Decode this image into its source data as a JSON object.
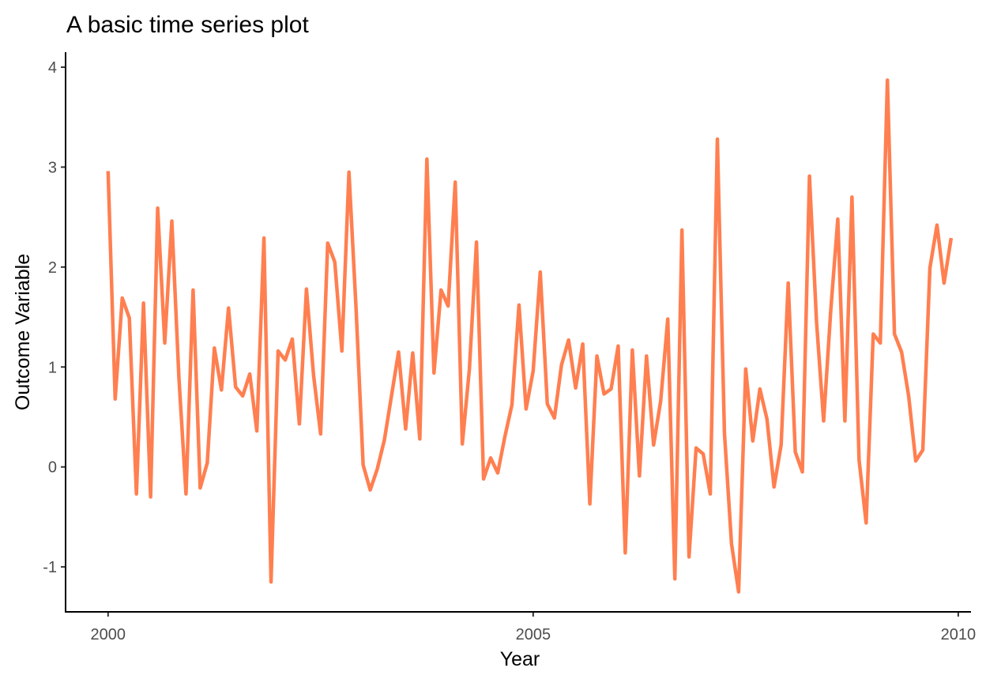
{
  "chart_data": {
    "type": "line",
    "title": "A basic time series plot",
    "xlabel": "Year",
    "ylabel": "Outcome Variable",
    "xlim": [
      1999.5,
      2010.15
    ],
    "ylim": [
      -1.45,
      4.15
    ],
    "xticks": [
      {
        "value": 2000,
        "label": "2000"
      },
      {
        "value": 2005,
        "label": "2005"
      },
      {
        "value": 2010,
        "label": "2010"
      }
    ],
    "yticks": [
      {
        "value": -1,
        "label": "-1"
      },
      {
        "value": 0,
        "label": "0"
      },
      {
        "value": 1,
        "label": "1"
      },
      {
        "value": 2,
        "label": "2"
      },
      {
        "value": 3,
        "label": "3"
      },
      {
        "value": 4,
        "label": "4"
      }
    ],
    "grid": false,
    "legend": "none",
    "colors": {
      "line": "#ff7f50"
    },
    "series": [
      {
        "x_start": 2000,
        "x_step_months": 1,
        "values": [
          2.96,
          0.68,
          1.69,
          1.49,
          -0.27,
          1.64,
          -0.3,
          2.59,
          1.24,
          2.46,
          0.89,
          -0.27,
          1.77,
          -0.21,
          0.04,
          1.19,
          0.77,
          1.59,
          0.8,
          0.71,
          0.93,
          0.36,
          2.29,
          -1.15,
          1.16,
          1.07,
          1.28,
          0.43,
          1.78,
          0.92,
          0.33,
          2.24,
          2.05,
          1.16,
          2.95,
          1.59,
          0.02,
          -0.23,
          -0.02,
          0.27,
          0.71,
          1.15,
          0.38,
          1.14,
          0.28,
          3.08,
          0.94,
          1.77,
          1.61,
          2.85,
          0.23,
          0.98,
          2.25,
          -0.12,
          0.09,
          -0.06,
          0.3,
          0.62,
          1.62,
          0.58,
          0.96,
          1.95,
          0.63,
          0.49,
          1.02,
          1.27,
          0.79,
          1.23,
          -0.37,
          1.11,
          0.73,
          0.78,
          1.21,
          -0.86,
          1.17,
          -0.09,
          1.11,
          0.22,
          0.66,
          1.48,
          -1.12,
          2.37,
          -0.9,
          0.19,
          0.13,
          -0.27,
          3.28,
          0.34,
          -0.77,
          -1.25,
          0.98,
          0.26,
          0.78,
          0.48,
          -0.2,
          0.22,
          1.84,
          0.15,
          -0.05,
          2.91,
          1.45,
          0.46,
          1.56,
          2.48,
          0.46,
          2.7,
          0.07,
          -0.56,
          1.33,
          1.24,
          3.87,
          1.33,
          1.15,
          0.71,
          0.06,
          0.17,
          1.99,
          2.42,
          1.84,
          2.29
        ]
      }
    ]
  }
}
